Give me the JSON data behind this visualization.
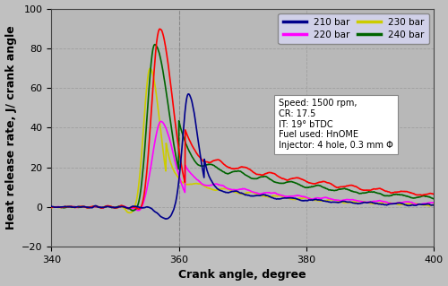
{
  "xlabel": "Crank angle, degree",
  "ylabel": "Heat release rate, J/ crank angle",
  "xlim": [
    340,
    400
  ],
  "ylim": [
    -20,
    100
  ],
  "xticks": [
    340,
    360,
    380,
    400
  ],
  "yticks": [
    -20,
    0,
    20,
    40,
    60,
    80,
    100
  ],
  "lines": {
    "210bar": {
      "color": "#00008B",
      "label": "210 bar"
    },
    "220bar": {
      "color": "#FF00FF",
      "label": "220 bar"
    },
    "230bar": {
      "color": "#CCCC00",
      "label": "230 bar"
    },
    "240bar": {
      "color": "#006400",
      "label": "240 bar"
    },
    "red": {
      "color": "#FF0000",
      "label": ""
    }
  },
  "annotation": "Speed: 1500 rpm,\nCR: 17.5\nIT: 19° bTDC\nFuel used: HnOME\nInjector: 4 hole, 0.3 mm Φ",
  "vline_x": 360,
  "figsize": [
    5.0,
    3.19
  ],
  "dpi": 100,
  "bg_color": "#c0c0c0",
  "plot_bg": "#b8b8b8",
  "legend_bg": "#d0d0e8",
  "grid_color": "#a0a0a0",
  "grid_style": "--"
}
